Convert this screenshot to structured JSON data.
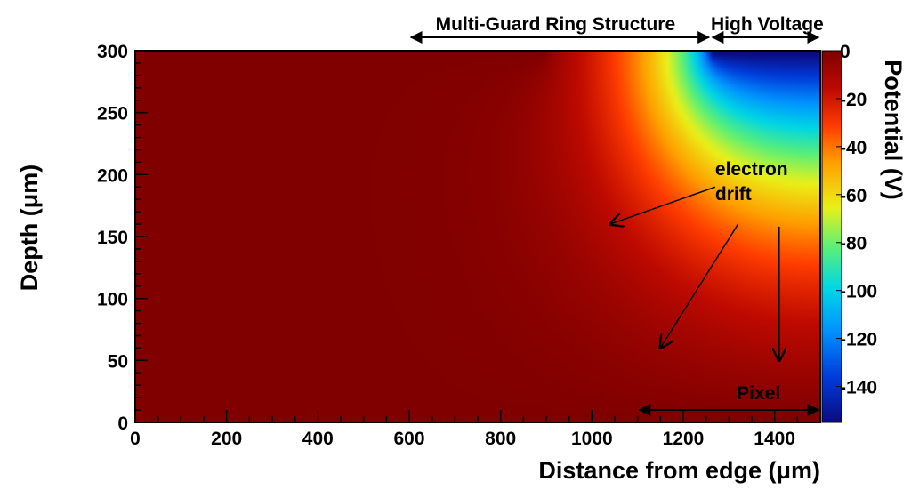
{
  "chart_data": {
    "type": "heatmap",
    "xlabel": "Distance from edge (μm)",
    "ylabel": "Depth (μm)",
    "colorbar_label": "Potential (V)",
    "xlim": [
      0,
      1500
    ],
    "ylim": [
      0,
      300
    ],
    "zlim": [
      -155,
      0
    ],
    "x_ticks": [
      0,
      200,
      400,
      600,
      800,
      1000,
      1200,
      1400
    ],
    "y_ticks": [
      0,
      50,
      100,
      150,
      200,
      250,
      300
    ],
    "z_ticks": [
      0,
      -20,
      -40,
      -60,
      -80,
      -100,
      -120,
      -140
    ],
    "field_model": {
      "hv_contact_x_range": [
        1260,
        1500
      ],
      "hv_potential": -155,
      "ground_potential": 0,
      "hv_contact_edge_y": 300
    },
    "annotations": [
      {
        "text": "Multi-Guard Ring Structure",
        "x_range": [
          600,
          1260
        ],
        "y": 300
      },
      {
        "text": "High Voltage",
        "x_range": [
          1260,
          1500
        ],
        "y": 300
      },
      {
        "text": "Pixel",
        "x_range": [
          1100,
          1500
        ],
        "y": 0
      },
      {
        "text": "electron",
        "x": 1270,
        "y": 205
      },
      {
        "text": "drift",
        "x": 1270,
        "y": 180
      },
      {
        "arrow_from": [
          1270,
          190
        ],
        "arrow_to": [
          1040,
          160
        ]
      },
      {
        "arrow_from": [
          1320,
          160
        ],
        "arrow_to": [
          1150,
          60
        ]
      },
      {
        "arrow_from": [
          1410,
          158
        ],
        "arrow_to": [
          1410,
          50
        ]
      }
    ]
  }
}
